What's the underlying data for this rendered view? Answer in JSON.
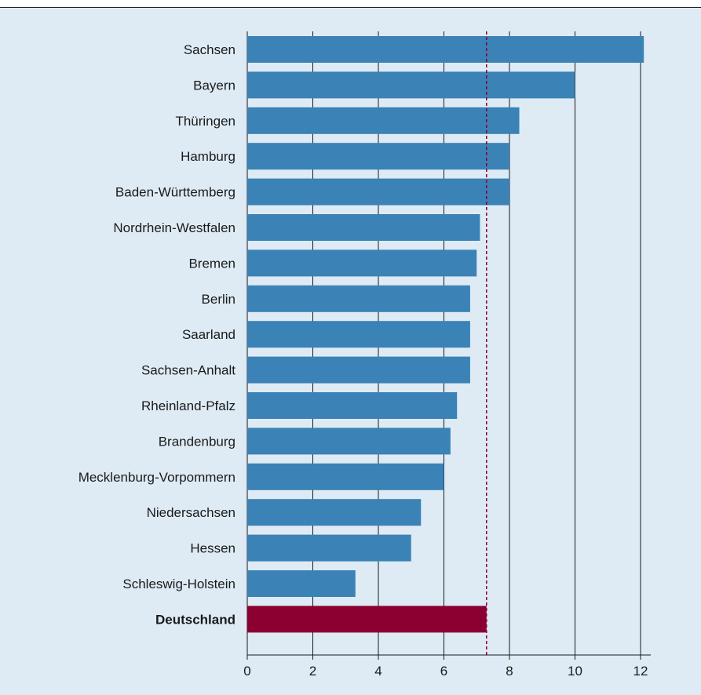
{
  "colors": {
    "background": "#deebf5",
    "bar": "#3b82b6",
    "highlight_bar": "#8b0030",
    "reference_line": "#8b0030",
    "grid": "#1a1a1a",
    "text": "#1a1a1a"
  },
  "chart_data": {
    "type": "bar",
    "orientation": "horizontal",
    "title": "",
    "xlabel": "",
    "ylabel": "",
    "categories": [
      "Sachsen",
      "Bayern",
      "Thüringen",
      "Hamburg",
      "Baden-Württemberg",
      "Nordrhein-Westfalen",
      "Bremen",
      "Berlin",
      "Saarland",
      "Sachsen-Anhalt",
      "Rheinland-Pfalz",
      "Brandenburg",
      "Mecklenburg-Vorpommern",
      "Niedersachsen",
      "Hessen",
      "Schleswig-Holstein",
      "Deutschland"
    ],
    "values": [
      12.1,
      10.0,
      8.3,
      8.0,
      8.0,
      7.1,
      7.0,
      6.8,
      6.8,
      6.8,
      6.4,
      6.2,
      6.0,
      5.3,
      5.0,
      3.3,
      7.3
    ],
    "highlight_category": "Deutschland",
    "reference_line_value": 7.3,
    "xlim": [
      0,
      13
    ],
    "xticks": [
      0,
      2,
      4,
      6,
      8,
      10,
      12
    ],
    "xtick_labels": [
      "0",
      "2",
      "4",
      "6",
      "8",
      "10",
      "12"
    ],
    "grid": "vertical",
    "legend": "none"
  }
}
